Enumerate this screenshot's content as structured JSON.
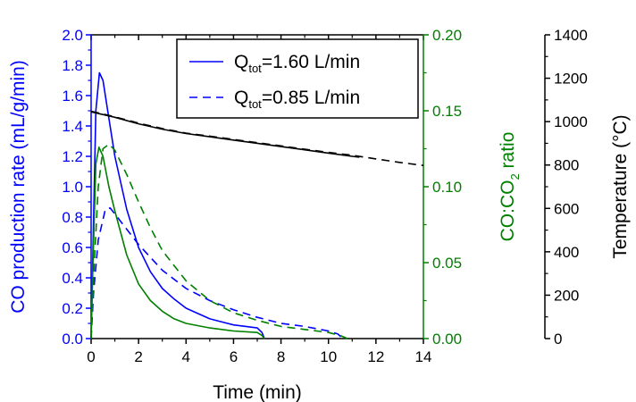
{
  "chart_data": {
    "type": "line",
    "xlabel": "Time (min)",
    "x_axis": {
      "range": [
        0,
        14
      ],
      "ticks": [
        0,
        2,
        4,
        6,
        8,
        10,
        12,
        14
      ],
      "tick_labels": [
        "0",
        "2",
        "4",
        "6",
        "8",
        "10",
        "12",
        "14"
      ]
    },
    "y_axes": [
      {
        "id": "co_rate",
        "label": "CO production rate (mL/g/min)",
        "color": "#0000ff",
        "range": [
          0,
          2.0
        ],
        "ticks": [
          0,
          0.2,
          0.4,
          0.6,
          0.8,
          1.0,
          1.2,
          1.4,
          1.6,
          1.8,
          2.0
        ],
        "tick_labels": [
          "0.0",
          "0.2",
          "0.4",
          "0.6",
          "0.8",
          "1.0",
          "1.2",
          "1.4",
          "1.6",
          "1.8",
          "2.0"
        ]
      },
      {
        "id": "ratio",
        "label_parts": [
          "CO:CO",
          "2",
          " ratio"
        ],
        "color": "#008000",
        "range": [
          0,
          0.2
        ],
        "ticks": [
          0,
          0.05,
          0.1,
          0.15,
          0.2
        ],
        "tick_labels": [
          "0.00",
          "0.05",
          "0.10",
          "0.15",
          "0.20"
        ]
      },
      {
        "id": "temp",
        "label": "Temperature (°C)",
        "color": "#000000",
        "range": [
          0,
          1400
        ],
        "ticks": [
          0,
          200,
          400,
          600,
          800,
          1000,
          1200,
          1400
        ],
        "tick_labels": [
          "0",
          "200",
          "400",
          "600",
          "800",
          "1000",
          "1200",
          "1400"
        ]
      }
    ],
    "legend": {
      "placement": "top-right",
      "entries": [
        {
          "label_parts": [
            "Q",
            "tot",
            "=1.60 L/min"
          ],
          "color": "#0000ff",
          "dash": "solid"
        },
        {
          "label_parts": [
            "Q",
            "tot",
            "=0.85 L/min"
          ],
          "color": "#0000ff",
          "dash": "dashed"
        }
      ]
    },
    "series": [
      {
        "axis": "co_rate",
        "color": "#0000ff",
        "dash": "solid",
        "points": [
          [
            0,
            0
          ],
          [
            0.08,
            0.6
          ],
          [
            0.2,
            1.5
          ],
          [
            0.35,
            1.75
          ],
          [
            0.5,
            1.7
          ],
          [
            0.75,
            1.45
          ],
          [
            1,
            1.2
          ],
          [
            1.5,
            0.85
          ],
          [
            2,
            0.6
          ],
          [
            2.5,
            0.44
          ],
          [
            3,
            0.33
          ],
          [
            3.5,
            0.26
          ],
          [
            4,
            0.2
          ],
          [
            5,
            0.13
          ],
          [
            6,
            0.09
          ],
          [
            7,
            0.07
          ],
          [
            7.2,
            0.04
          ],
          [
            7.3,
            0
          ]
        ]
      },
      {
        "axis": "co_rate",
        "color": "#0000ff",
        "dash": "dashed",
        "points": [
          [
            0,
            0
          ],
          [
            0.1,
            0.3
          ],
          [
            0.3,
            0.65
          ],
          [
            0.6,
            0.85
          ],
          [
            0.8,
            0.86
          ],
          [
            1,
            0.82
          ],
          [
            1.5,
            0.72
          ],
          [
            2,
            0.62
          ],
          [
            3,
            0.45
          ],
          [
            4,
            0.33
          ],
          [
            5,
            0.25
          ],
          [
            6,
            0.19
          ],
          [
            7,
            0.14
          ],
          [
            8,
            0.1
          ],
          [
            9,
            0.08
          ],
          [
            10,
            0.05
          ],
          [
            10.4,
            0.03
          ],
          [
            10.6,
            0
          ]
        ]
      },
      {
        "axis": "ratio",
        "color": "#008000",
        "dash": "solid",
        "points": [
          [
            0,
            0
          ],
          [
            0.08,
            0.05
          ],
          [
            0.2,
            0.115
          ],
          [
            0.33,
            0.126
          ],
          [
            0.5,
            0.12
          ],
          [
            0.75,
            0.1
          ],
          [
            1,
            0.084
          ],
          [
            1.5,
            0.055
          ],
          [
            2,
            0.036
          ],
          [
            2.5,
            0.025
          ],
          [
            3,
            0.018
          ],
          [
            3.5,
            0.013
          ],
          [
            4,
            0.01
          ],
          [
            5,
            0.007
          ],
          [
            6,
            0.005
          ],
          [
            7,
            0.004
          ],
          [
            7.2,
            0.002
          ],
          [
            7.3,
            0
          ]
        ]
      },
      {
        "axis": "ratio",
        "color": "#008000",
        "dash": "dashed",
        "points": [
          [
            0,
            0
          ],
          [
            0.1,
            0.04
          ],
          [
            0.3,
            0.1
          ],
          [
            0.5,
            0.125
          ],
          [
            0.75,
            0.128
          ],
          [
            1,
            0.124
          ],
          [
            1.5,
            0.108
          ],
          [
            2,
            0.09
          ],
          [
            2.5,
            0.073
          ],
          [
            3,
            0.058
          ],
          [
            4,
            0.038
          ],
          [
            5,
            0.025
          ],
          [
            6,
            0.017
          ],
          [
            7,
            0.012
          ],
          [
            8,
            0.008
          ],
          [
            9,
            0.006
          ],
          [
            10,
            0.004
          ],
          [
            10.5,
            0.002
          ],
          [
            10.8,
            0
          ]
        ]
      },
      {
        "axis": "temp",
        "color": "#000000",
        "dash": "solid",
        "points": [
          [
            0,
            1045
          ],
          [
            1,
            1020
          ],
          [
            2,
            990
          ],
          [
            3,
            965
          ],
          [
            4,
            945
          ],
          [
            5,
            930
          ],
          [
            6,
            915
          ],
          [
            7,
            900
          ],
          [
            8,
            885
          ],
          [
            9,
            870
          ],
          [
            10,
            855
          ],
          [
            11,
            840
          ],
          [
            11.3,
            836
          ]
        ]
      },
      {
        "axis": "temp",
        "color": "#000000",
        "dash": "dashed",
        "points": [
          [
            0,
            1048
          ],
          [
            1,
            1022
          ],
          [
            2,
            993
          ],
          [
            3,
            968
          ],
          [
            4,
            947
          ],
          [
            5,
            933
          ],
          [
            6,
            918
          ],
          [
            7,
            903
          ],
          [
            8,
            888
          ],
          [
            9,
            873
          ],
          [
            10,
            858
          ],
          [
            11,
            845
          ],
          [
            12,
            828
          ],
          [
            13,
            812
          ],
          [
            14,
            798
          ]
        ]
      }
    ]
  }
}
